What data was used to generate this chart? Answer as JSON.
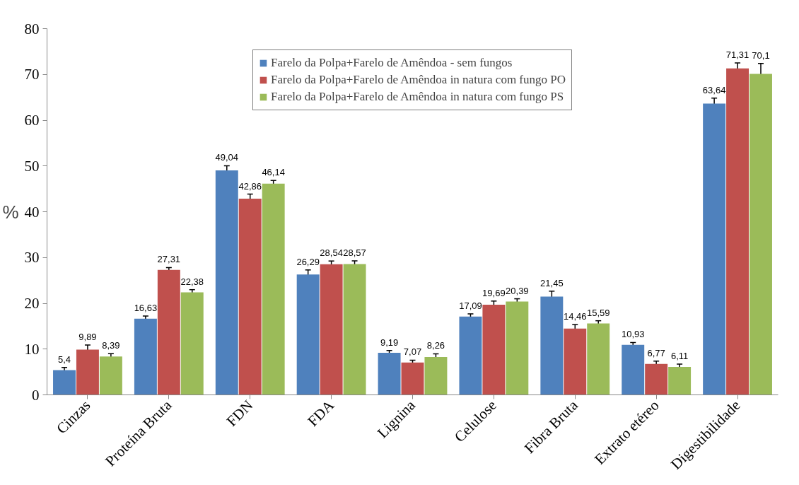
{
  "chart_data": {
    "type": "bar",
    "ylabel": "%",
    "categories": [
      "Cinzas",
      "Proteína Bruta",
      "FDN",
      "FDA",
      "Lignina",
      "Celulose",
      "Fibra Bruta",
      "Extrato etéreo",
      "Digestibilidade"
    ],
    "series": [
      {
        "name": "Farelo da Polpa+Farelo de Amêndoa - sem fungos",
        "color": "#4f81bd",
        "values": [
          5.4,
          16.63,
          49.04,
          26.29,
          9.19,
          17.09,
          21.45,
          10.93,
          63.64
        ],
        "errors": [
          0.6,
          0.6,
          1.0,
          1.0,
          0.5,
          0.6,
          1.2,
          0.5,
          1.2
        ],
        "value_labels": [
          "5,4",
          "16,63",
          "49,04",
          "26,29",
          "9,19",
          "17,09",
          "21,45",
          "10,93",
          "63,64"
        ]
      },
      {
        "name": "Farelo da Polpa+Farelo de Amêndoa in natura com fungo PO",
        "color": "#c0504d",
        "values": [
          9.89,
          27.31,
          42.86,
          28.54,
          7.07,
          19.69,
          14.46,
          6.77,
          71.31
        ],
        "errors": [
          1.0,
          0.5,
          1.0,
          0.7,
          0.5,
          0.8,
          0.9,
          0.6,
          1.2
        ],
        "value_labels": [
          "9,89",
          "27,31",
          "42,86",
          "28,54",
          "7,07",
          "19,69",
          "14,46",
          "6,77",
          "71,31"
        ]
      },
      {
        "name": "Farelo da Polpa+Farelo de Amêndoa in natura com fungo PS",
        "color": "#9bbb59",
        "values": [
          8.39,
          22.38,
          46.14,
          28.57,
          8.26,
          20.39,
          15.59,
          6.11,
          70.1
        ],
        "errors": [
          0.6,
          0.6,
          0.7,
          0.7,
          0.7,
          0.6,
          0.6,
          0.6,
          2.3
        ],
        "value_labels": [
          "8,39",
          "22,38",
          "46,14",
          "28,57",
          "8,26",
          "20,39",
          "15,59",
          "6,11",
          "70,1"
        ]
      }
    ],
    "ylim": [
      0,
      80
    ],
    "yticks": [
      0,
      10,
      20,
      30,
      40,
      50,
      60,
      70,
      80
    ],
    "grid": false,
    "legend": "top"
  }
}
